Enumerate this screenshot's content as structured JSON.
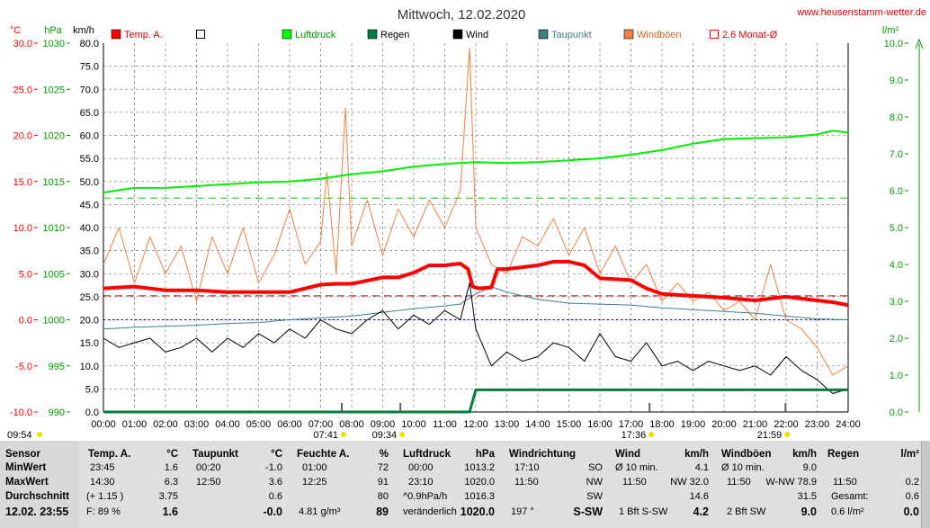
{
  "chart_data": {
    "type": "line",
    "title": "Mittwoch, 12.02.2020",
    "watermark": "www.heusenstamm-wetter.de",
    "left_axes": [
      {
        "unit": "°C",
        "color": "#ff0000",
        "ticks": [
          "30.0",
          "25.0",
          "20.0",
          "15.0",
          "10.0",
          "5.0",
          "0.0",
          "-5.0",
          "-10.0"
        ],
        "range": [
          -10,
          30
        ]
      },
      {
        "unit": "hPa",
        "color": "#009900",
        "ticks": [
          "1030",
          "1025",
          "1020",
          "1015",
          "1010",
          "1005",
          "1000",
          "995",
          "990"
        ],
        "range": [
          990,
          1030
        ]
      },
      {
        "unit": "km/h",
        "color": "#000000",
        "ticks": [
          "80.0",
          "75.0",
          "70.0",
          "65.0",
          "60.0",
          "55.0",
          "50.0",
          "45.0",
          "40.0",
          "35.0",
          "30.0",
          "25.0",
          "20.0",
          "15.0",
          "10.0",
          "5.0",
          "0.0"
        ],
        "range": [
          0,
          80
        ]
      }
    ],
    "right_axis": {
      "unit": "l/m²",
      "color": "#009900",
      "ticks": [
        "10.0",
        "9.0",
        "8.0",
        "7.0",
        "6.0",
        "5.0",
        "4.0",
        "3.0",
        "2.0",
        "1.0",
        "0.0"
      ],
      "range": [
        0,
        10
      ]
    },
    "x_ticks": [
      "00:00",
      "01:00",
      "02:00",
      "03:00",
      "04:00",
      "05:00",
      "06:00",
      "07:00",
      "08:00",
      "09:00",
      "10:00",
      "11:00",
      "12:00",
      "13:00",
      "14:00",
      "15:00",
      "16:00",
      "17:00",
      "18:00",
      "19:00",
      "20:00",
      "21:00",
      "22:00",
      "23:00",
      "24:00"
    ],
    "sun_markers": [
      {
        "label": "09:54",
        "hour": 9.9
      },
      {
        "label": "07:41",
        "hour": 7.68
      },
      {
        "label": "09:34",
        "hour": 9.57
      },
      {
        "label": "17:36",
        "hour": 17.6
      },
      {
        "label": "21:59",
        "hour": 21.98
      }
    ],
    "legend": [
      {
        "label": "Temp. A.",
        "color": "#ff0000",
        "swatch": "filled"
      },
      {
        "label": "",
        "color": "#ffffff",
        "swatch": "box"
      },
      {
        "label": "Luftdruck",
        "color": "#00ff00",
        "swatch": "filled"
      },
      {
        "label": "Regen",
        "color": "#007f3f",
        "swatch": "filled"
      },
      {
        "label": "Wind",
        "color": "#000000",
        "swatch": "filled"
      },
      {
        "label": "Taupunkt",
        "color": "#3f7f7f",
        "swatch": "filled"
      },
      {
        "label": "Windböen",
        "color": "#f08040",
        "swatch": "filled"
      },
      {
        "label": "2.6 Monat-Ø",
        "color": "#ff0000",
        "swatch": "box"
      }
    ],
    "reference_lines": {
      "temp_month_avg": 2.6,
      "pressure_ref": 1013.2,
      "temp_zero": 0.0
    },
    "series": [
      {
        "name": "Temp. A.",
        "axis": "temp",
        "color": "#ff0000",
        "x": [
          0,
          1,
          2,
          3,
          4,
          5,
          6,
          7,
          7.5,
          8,
          9,
          9.5,
          10,
          10.5,
          11,
          11.5,
          11.75,
          11.9,
          12.1,
          12.5,
          12.7,
          13,
          14,
          14.5,
          15,
          15.5,
          16,
          17,
          17.5,
          18,
          19,
          20,
          21,
          22,
          23,
          23.5,
          24
        ],
        "y": [
          3.4,
          3.6,
          3.2,
          3.2,
          3.0,
          3.0,
          3.0,
          3.8,
          3.9,
          3.9,
          4.6,
          4.6,
          5.1,
          5.9,
          5.9,
          6.1,
          5.5,
          3.6,
          3.4,
          3.5,
          5.5,
          5.5,
          5.9,
          6.3,
          6.3,
          5.9,
          4.5,
          4.3,
          3.4,
          2.8,
          2.6,
          2.4,
          2.1,
          2.5,
          2.1,
          1.9,
          1.6
        ]
      },
      {
        "name": "Luftdruck",
        "axis": "pressure",
        "color": "#00ee00",
        "x": [
          0,
          1,
          2,
          3,
          4,
          5,
          6,
          7,
          8,
          9,
          10,
          11,
          12,
          13,
          14,
          15,
          16,
          17,
          18,
          19,
          20,
          21,
          22,
          23,
          23.5,
          24
        ],
        "y": [
          1013.8,
          1014.3,
          1014.3,
          1014.5,
          1014.7,
          1014.9,
          1015.0,
          1015.3,
          1015.8,
          1016.1,
          1016.6,
          1016.9,
          1017.1,
          1017.0,
          1017.1,
          1017.3,
          1017.5,
          1017.9,
          1018.4,
          1019.1,
          1019.6,
          1019.7,
          1019.8,
          1020.1,
          1020.5,
          1020.3
        ]
      },
      {
        "name": "Regen",
        "axis": "rain",
        "color": "#007f3f",
        "x": [
          0,
          11.8,
          12.0,
          12.1,
          24
        ],
        "y": [
          0,
          0,
          0.6,
          0.6,
          0.6
        ]
      },
      {
        "name": "Taupunkt",
        "axis": "temp",
        "color": "#3f7f7f",
        "x": [
          0,
          1,
          2,
          3,
          4,
          5,
          6,
          7,
          8,
          9,
          10,
          11,
          11.5,
          12,
          12.5,
          13,
          14,
          15,
          16,
          17,
          18,
          19,
          20,
          21,
          22,
          23,
          24
        ],
        "y": [
          -1.0,
          -0.8,
          -0.7,
          -0.6,
          -0.4,
          -0.3,
          0.0,
          0.2,
          0.4,
          0.8,
          1.2,
          1.5,
          1.7,
          2.8,
          3.6,
          3.0,
          2.2,
          1.8,
          1.7,
          1.6,
          1.3,
          1.1,
          0.9,
          0.7,
          0.4,
          0.1,
          0.0
        ]
      },
      {
        "name": "Wind",
        "axis": "wind",
        "color": "#000000",
        "x": [
          0,
          0.5,
          1,
          1.5,
          2,
          2.5,
          3,
          3.5,
          4,
          4.5,
          5,
          5.5,
          6,
          6.5,
          7,
          7.5,
          8,
          8.5,
          9,
          9.5,
          10,
          10.5,
          11,
          11.5,
          11.8,
          12,
          12.5,
          13,
          13.5,
          14,
          14.5,
          15,
          15.5,
          16,
          16.5,
          17,
          17.5,
          18,
          18.5,
          19,
          19.5,
          20,
          20.5,
          21,
          21.5,
          22,
          22.5,
          23,
          23.5,
          24
        ],
        "y": [
          16,
          14,
          15,
          16,
          13,
          14,
          16,
          13,
          16,
          14,
          17,
          15,
          18,
          16,
          20,
          18,
          17,
          20,
          22,
          18,
          21,
          19,
          22,
          20,
          28,
          18,
          10,
          13,
          11,
          12,
          15,
          14,
          11,
          17,
          12,
          11,
          15,
          10,
          11,
          9,
          11,
          10,
          9,
          10,
          8,
          12,
          9,
          7,
          4,
          5
        ]
      },
      {
        "name": "Windböen",
        "axis": "wind",
        "color": "#f08040",
        "x": [
          0,
          0.5,
          1,
          1.5,
          2,
          2.5,
          3,
          3.5,
          4,
          4.5,
          5,
          5.5,
          6,
          6.5,
          7,
          7.2,
          7.5,
          7.8,
          8,
          8.5,
          9,
          9.5,
          10,
          10.5,
          11,
          11.5,
          11.8,
          12,
          12.5,
          13,
          13.5,
          14,
          14.5,
          15,
          15.5,
          16,
          16.5,
          17,
          17.5,
          18,
          18.5,
          19,
          19.5,
          20,
          20.5,
          21,
          21.5,
          22,
          22.5,
          23,
          23.5,
          24
        ],
        "y": [
          32,
          40,
          28,
          38,
          30,
          36,
          24,
          38,
          30,
          40,
          28,
          34,
          44,
          32,
          37,
          52,
          30,
          66,
          36,
          46,
          34,
          44,
          38,
          46,
          40,
          48,
          79,
          40,
          32,
          30,
          38,
          36,
          42,
          34,
          40,
          30,
          36,
          28,
          32,
          24,
          28,
          24,
          26,
          22,
          24,
          20,
          32,
          20,
          18,
          14,
          8,
          10
        ]
      }
    ]
  },
  "panel": {
    "sensor": {
      "header": "Sensor",
      "rows": [
        "MinWert",
        "MaxWert",
        "Durchschnitt"
      ],
      "current": "12.02.  23:55"
    },
    "temp": {
      "header": "Temp. A.",
      "unit": "°C",
      "min_time": "23:45",
      "min": "1.6",
      "max_time": "14:30",
      "max": "6.3",
      "avg_note": "(+ 1.15 )",
      "avg": "3.75",
      "cur_note": "F: 89 %",
      "cur": "1.6"
    },
    "dew": {
      "header": "Taupunkt",
      "unit": "°C",
      "min_time": "00:20",
      "min": "-1.0",
      "max_time": "12:50",
      "max": "3.6",
      "avg": "0.6",
      "cur": "-0.0"
    },
    "humid": {
      "header": "Feuchte A.",
      "unit": "%",
      "min_time": "01:00",
      "min": "72",
      "max_time": "12:25",
      "max": "91",
      "avg": "80",
      "cur_note": "4.81 g/m³",
      "cur": "89"
    },
    "press": {
      "header": "Luftdruck",
      "unit": "hPa",
      "min_time": "00:00",
      "min": "1013.2",
      "max_time": "23:10",
      "max": "1020.0",
      "avg_note": "^0.9hPa/h",
      "avg": "1016.3",
      "cur_note": "veränderlich",
      "cur": "1020.0"
    },
    "dir": {
      "header": "Windrichtung",
      "min_time": "17:10",
      "min": "SO",
      "max_time": "11:50",
      "max": "NW",
      "avg": "SW",
      "cur_note": "197 °",
      "cur": "S-SW"
    },
    "wind": {
      "header": "Wind",
      "unit": "km/h",
      "min_note": "Ø 10 min.",
      "min": "4.1",
      "max_time": "11:50",
      "max": "NW 32.0",
      "avg": "14.6",
      "cur_note": "1 Bft S-SW",
      "cur": "4.2"
    },
    "gust": {
      "header": "Windböen",
      "unit": "km/h",
      "min_note": "Ø 10 min.",
      "min": "9.0",
      "max_time": "11:50",
      "max": "W-NW 78.9",
      "avg": "31.5",
      "cur_note": "2 Bft SW",
      "cur": "9.0"
    },
    "rain": {
      "header": "Regen",
      "unit": "l/m²",
      "max_time": "11:50",
      "max": "0.2",
      "avg_note": "Gesamt:",
      "avg": "0.6",
      "cur_note": "0.6 l/m²",
      "cur": "0.0"
    }
  }
}
